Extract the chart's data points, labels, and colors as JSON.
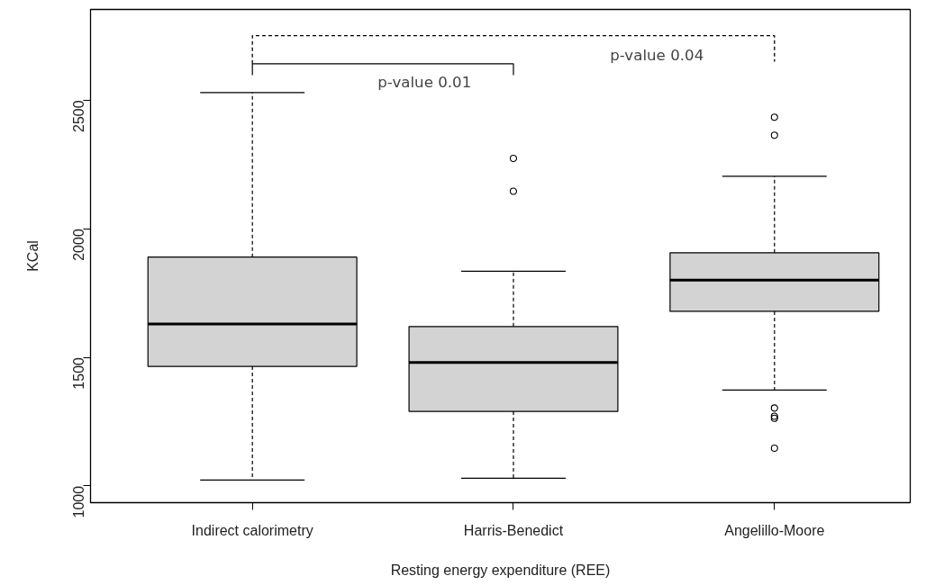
{
  "chart_data": {
    "type": "box",
    "xlabel": "Resting energy expenditure (REE)",
    "ylabel": "KCal",
    "categories": [
      "Indirect calorimetry",
      "Harris-Benedict",
      "Angelillo-Moore"
    ],
    "boxes": [
      {
        "low": 1023,
        "q1": 1465,
        "median": 1630,
        "q3": 1890,
        "high": 2530
      },
      {
        "low": 1030,
        "q1": 1290,
        "median": 1480,
        "q3": 1620,
        "high": 1835,
        "outliers": [
          2274,
          2146
        ]
      },
      {
        "low": 1373,
        "q1": 1679,
        "median": 1800,
        "q3": 1907,
        "high": 2204,
        "outliers": [
          2434,
          2364,
          1303,
          1271,
          1263,
          1147
        ]
      }
    ],
    "color": "#d3d3d3",
    "ylim": [
      935,
      2853
    ],
    "yticks": [
      1000,
      1500,
      2000,
      2500
    ],
    "grid": false,
    "annotations": [
      "p-value 0.01",
      "p-value 0.04"
    ]
  }
}
